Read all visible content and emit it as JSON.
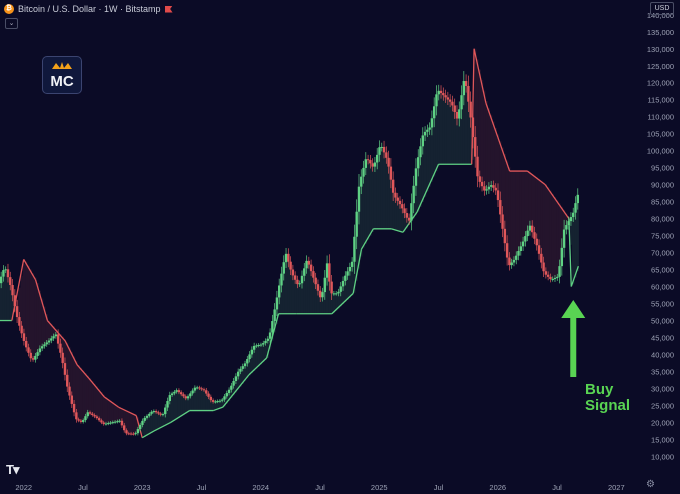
{
  "header": {
    "symbol_text": "Bitcoin / U.S. Dollar · 1W · Bitstamp",
    "coin_glyph": "₿"
  },
  "logo": {
    "text": "MC"
  },
  "currency": "USD",
  "annotation": {
    "line1": "Buy",
    "line2": "Signal",
    "color": "#59d453"
  },
  "colors": {
    "background": "#0b0b26",
    "up": "#5fd184",
    "down": "#e0575a",
    "band_up": "#5fd184",
    "band_down": "#e0575a"
  },
  "chart_data": {
    "type": "line",
    "title": "Bitcoin / U.S. Dollar · 1W · Bitstamp",
    "xlim": [
      2021.8,
      2027.2
    ],
    "ylim": [
      6000,
      142000
    ],
    "y_scale": "linear",
    "grid": false,
    "x_ticks": [
      {
        "x": 2022.0,
        "label": "2022"
      },
      {
        "x": 2022.5,
        "label": "Jul"
      },
      {
        "x": 2023.0,
        "label": "2023"
      },
      {
        "x": 2023.5,
        "label": "Jul"
      },
      {
        "x": 2024.0,
        "label": "2024"
      },
      {
        "x": 2024.5,
        "label": "Jul"
      },
      {
        "x": 2025.0,
        "label": "2025"
      },
      {
        "x": 2025.5,
        "label": "Jul"
      },
      {
        "x": 2026.0,
        "label": "2026"
      },
      {
        "x": 2026.5,
        "label": "Jul"
      },
      {
        "x": 2027.0,
        "label": "2027"
      }
    ],
    "y_ticks": [
      {
        "v": 10000,
        "label": "10,000"
      },
      {
        "v": 15000,
        "label": "15,000"
      },
      {
        "v": 20000,
        "label": "20,000"
      },
      {
        "v": 25000,
        "label": "25,000"
      },
      {
        "v": 30000,
        "label": "30,000"
      },
      {
        "v": 35000,
        "label": "35,000"
      },
      {
        "v": 40000,
        "label": "40,000"
      },
      {
        "v": 45000,
        "label": "45,000"
      },
      {
        "v": 50000,
        "label": "50,000"
      },
      {
        "v": 55000,
        "label": "55,000"
      },
      {
        "v": 60000,
        "label": "60,000"
      },
      {
        "v": 65000,
        "label": "65,000"
      },
      {
        "v": 70000,
        "label": "70,000"
      },
      {
        "v": 75000,
        "label": "75,000"
      },
      {
        "v": 80000,
        "label": "80,000"
      },
      {
        "v": 85000,
        "label": "85,000"
      },
      {
        "v": 90000,
        "label": "90,000"
      },
      {
        "v": 95000,
        "label": "95,000"
      },
      {
        "v": 100000,
        "label": "100,000"
      },
      {
        "v": 105000,
        "label": "105,000"
      },
      {
        "v": 110000,
        "label": "110,000"
      },
      {
        "v": 115000,
        "label": "115,000"
      },
      {
        "v": 120000,
        "label": "120,000"
      },
      {
        "v": 125000,
        "label": "125,000"
      },
      {
        "v": 130000,
        "label": "130,000"
      },
      {
        "v": 135000,
        "label": "135,000"
      },
      {
        "v": 140000,
        "label": "140,000"
      }
    ],
    "price_path": [
      [
        2021.8,
        61000
      ],
      [
        2021.85,
        66000
      ],
      [
        2021.9,
        60000
      ],
      [
        2021.96,
        50000
      ],
      [
        2022.02,
        43000
      ],
      [
        2022.08,
        38000
      ],
      [
        2022.15,
        42000
      ],
      [
        2022.22,
        44000
      ],
      [
        2022.28,
        46000
      ],
      [
        2022.33,
        39000
      ],
      [
        2022.38,
        30000
      ],
      [
        2022.45,
        21000
      ],
      [
        2022.5,
        20000
      ],
      [
        2022.55,
        23000
      ],
      [
        2022.62,
        21500
      ],
      [
        2022.68,
        19500
      ],
      [
        2022.75,
        20000
      ],
      [
        2022.82,
        20500
      ],
      [
        2022.87,
        16800
      ],
      [
        2022.95,
        16600
      ],
      [
        2023.02,
        21000
      ],
      [
        2023.1,
        23500
      ],
      [
        2023.18,
        22000
      ],
      [
        2023.24,
        28000
      ],
      [
        2023.3,
        29500
      ],
      [
        2023.38,
        27000
      ],
      [
        2023.46,
        30500
      ],
      [
        2023.53,
        29500
      ],
      [
        2023.6,
        26000
      ],
      [
        2023.68,
        26500
      ],
      [
        2023.75,
        30000
      ],
      [
        2023.82,
        35000
      ],
      [
        2023.88,
        37500
      ],
      [
        2023.95,
        42500
      ],
      [
        2024.02,
        43000
      ],
      [
        2024.08,
        45000
      ],
      [
        2024.12,
        52000
      ],
      [
        2024.18,
        63000
      ],
      [
        2024.22,
        70000
      ],
      [
        2024.27,
        64000
      ],
      [
        2024.33,
        60000
      ],
      [
        2024.4,
        68000
      ],
      [
        2024.46,
        62000
      ],
      [
        2024.52,
        56000
      ],
      [
        2024.57,
        67000
      ],
      [
        2024.6,
        58000
      ],
      [
        2024.66,
        58000
      ],
      [
        2024.72,
        63000
      ],
      [
        2024.78,
        67000
      ],
      [
        2024.84,
        90000
      ],
      [
        2024.9,
        98000
      ],
      [
        2024.96,
        95000
      ],
      [
        2025.02,
        102000
      ],
      [
        2025.08,
        97000
      ],
      [
        2025.13,
        87000
      ],
      [
        2025.19,
        84000
      ],
      [
        2025.26,
        79000
      ],
      [
        2025.32,
        95000
      ],
      [
        2025.38,
        105000
      ],
      [
        2025.44,
        107000
      ],
      [
        2025.5,
        118000
      ],
      [
        2025.56,
        116000
      ],
      [
        2025.62,
        114000
      ],
      [
        2025.67,
        109000
      ],
      [
        2025.73,
        122000
      ],
      [
        2025.78,
        110000
      ],
      [
        2025.84,
        92000
      ],
      [
        2025.9,
        88000
      ],
      [
        2025.95,
        90000
      ],
      [
        2026.0,
        88000
      ],
      [
        2026.05,
        77000
      ],
      [
        2026.1,
        66000
      ],
      [
        2026.15,
        68000
      ],
      [
        2026.22,
        73000
      ],
      [
        2026.28,
        78000
      ],
      [
        2026.34,
        72000
      ],
      [
        2026.4,
        64000
      ],
      [
        2026.46,
        62000
      ],
      [
        2026.52,
        63000
      ],
      [
        2026.57,
        77000
      ],
      [
        2026.62,
        80000
      ],
      [
        2026.65,
        82000
      ],
      [
        2026.68,
        87000
      ]
    ],
    "trail_stop": [
      [
        2021.8,
        50000
      ],
      [
        2021.9,
        50000
      ],
      [
        2022.0,
        68000
      ],
      [
        2022.1,
        62000
      ],
      [
        2022.2,
        50000
      ],
      [
        2022.35,
        44000
      ],
      [
        2022.45,
        37000
      ],
      [
        2022.55,
        33000
      ],
      [
        2022.68,
        27500
      ],
      [
        2022.8,
        24500
      ],
      [
        2022.95,
        22000
      ],
      [
        2023.0,
        15500
      ],
      [
        2023.1,
        17500
      ],
      [
        2023.24,
        20000
      ],
      [
        2023.4,
        23500
      ],
      [
        2023.6,
        23500
      ],
      [
        2023.68,
        24500
      ],
      [
        2023.75,
        27500
      ],
      [
        2023.9,
        34000
      ],
      [
        2024.05,
        39000
      ],
      [
        2024.15,
        52000
      ],
      [
        2024.3,
        52000
      ],
      [
        2024.6,
        52000
      ],
      [
        2024.78,
        58000
      ],
      [
        2024.85,
        71000
      ],
      [
        2024.95,
        77000
      ],
      [
        2025.1,
        77000
      ],
      [
        2025.2,
        76000
      ],
      [
        2025.32,
        82000
      ],
      [
        2025.5,
        96000
      ],
      [
        2025.78,
        96000
      ],
      [
        2025.8,
        130000
      ],
      [
        2025.9,
        114000
      ],
      [
        2026.0,
        104000
      ],
      [
        2026.1,
        94000
      ],
      [
        2026.25,
        94000
      ],
      [
        2026.4,
        90000
      ],
      [
        2026.52,
        84000
      ],
      [
        2026.6,
        80000
      ],
      [
        2026.62,
        60000
      ],
      [
        2026.68,
        66000
      ]
    ],
    "buy_signal": {
      "x": 2026.62,
      "y": 60000
    }
  }
}
